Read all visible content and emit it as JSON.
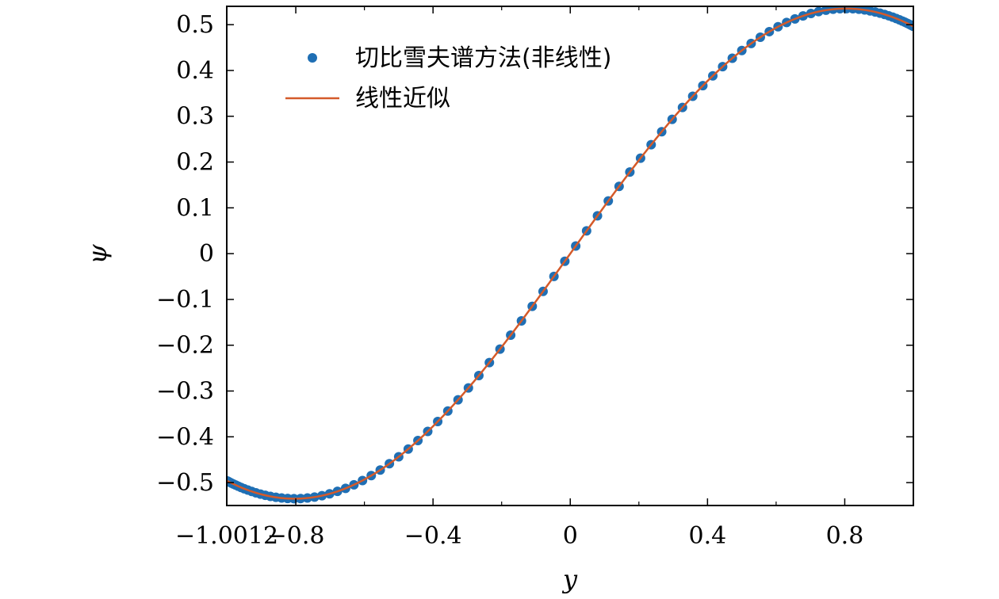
{
  "chart_data": {
    "type": "line",
    "title": "",
    "xlabel": "y",
    "ylabel": "ψ",
    "xlim": [
      -1.0012,
      1.0
    ],
    "ylim": [
      -0.55,
      0.54
    ],
    "xticks": [
      {
        "value": -1.0012,
        "label": "−1.0012"
      },
      {
        "value": -0.8,
        "label": "−0.8"
      },
      {
        "value": -0.4,
        "label": "−0.4"
      },
      {
        "value": 0,
        "label": "0"
      },
      {
        "value": 0.4,
        "label": "0.4"
      },
      {
        "value": 0.8,
        "label": "0.8"
      }
    ],
    "xminor": [
      -0.6,
      -0.2,
      0.2,
      0.6
    ],
    "yticks": [
      {
        "value": 0.5,
        "label": "0.5"
      },
      {
        "value": 0.4,
        "label": "0.4"
      },
      {
        "value": 0.3,
        "label": "0.3"
      },
      {
        "value": 0.2,
        "label": "0.2"
      },
      {
        "value": 0.1,
        "label": "0.1"
      },
      {
        "value": 0,
        "label": "0"
      },
      {
        "value": -0.1,
        "label": "−0.1"
      },
      {
        "value": -0.2,
        "label": "−0.2"
      },
      {
        "value": -0.3,
        "label": "−0.3"
      },
      {
        "value": -0.4,
        "label": "−0.4"
      },
      {
        "value": -0.5,
        "label": "−0.5"
      }
    ],
    "legend_position": "top-left",
    "series": [
      {
        "name": "切比雪夫谱方法(非线性)",
        "kind": "scatter",
        "color": "#1f6fb4",
        "note": "Chebyshev nodes y = cos(k·π/99), k = 0..99; psi follows the same curve as the linear approximation"
      },
      {
        "name": "线性近似",
        "kind": "line",
        "color": "#d45a2a",
        "formula": "psi = 0.5351 * sin(1.954 * y)"
      }
    ],
    "curve": {
      "amplitude": 0.5351,
      "frequency": 1.954,
      "scatter_count": 100
    }
  }
}
